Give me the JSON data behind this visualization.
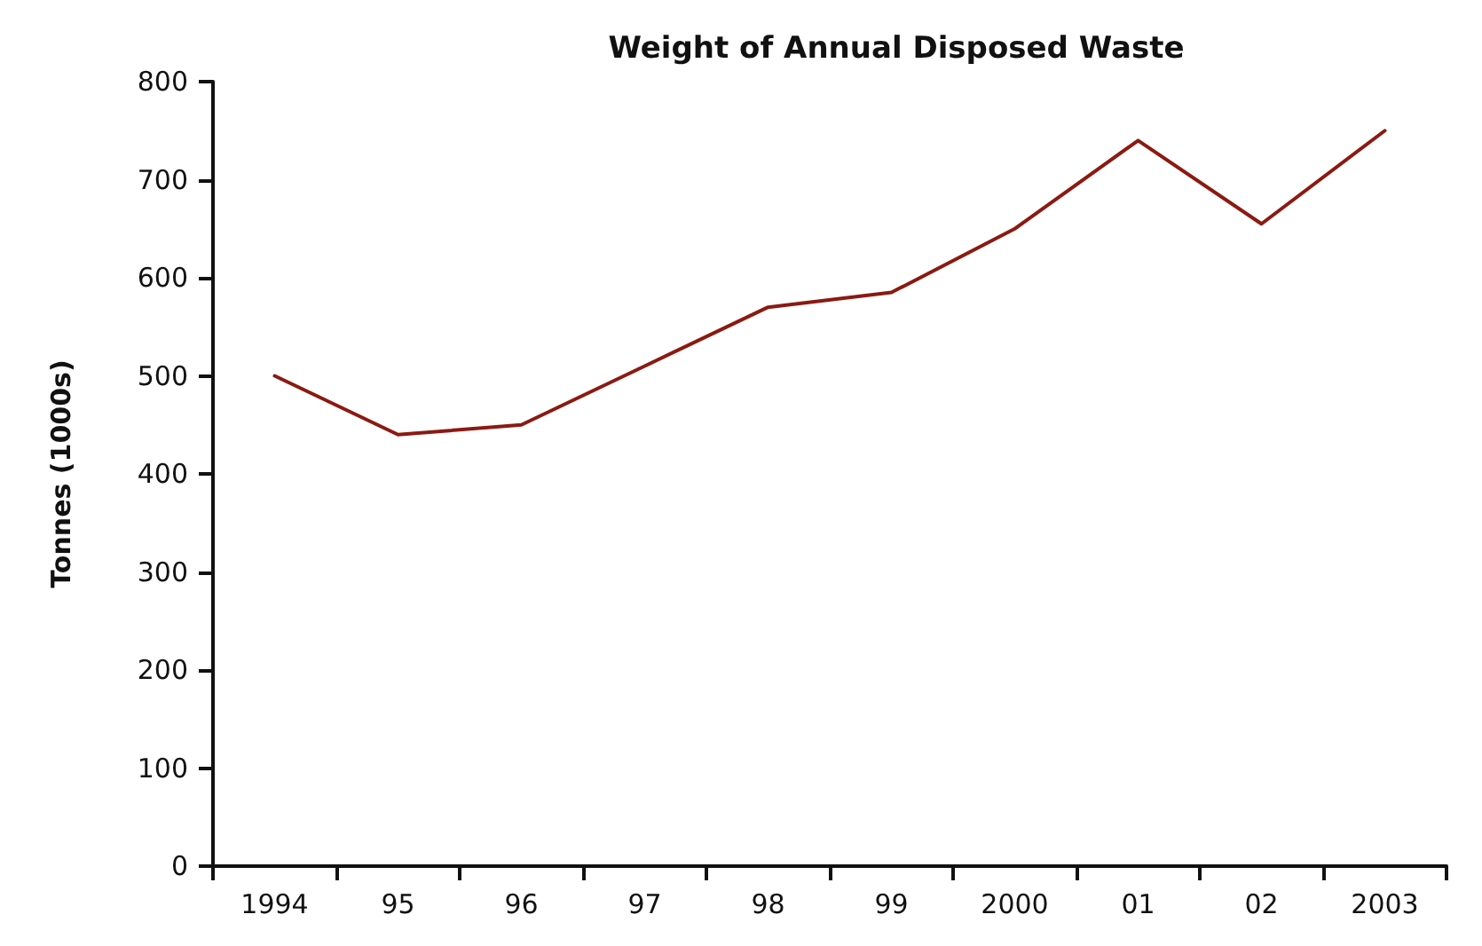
{
  "chart_data": {
    "type": "line",
    "title": "Weight of Annual Disposed Waste",
    "ylabel": "Tonnes (1000s)",
    "categories": [
      "1994",
      "95",
      "96",
      "97",
      "98",
      "99",
      "2000",
      "01",
      "02",
      "2003"
    ],
    "series": [
      {
        "color": "#8b1a12",
        "values": [
          500,
          440,
          450,
          510,
          570,
          585,
          650,
          740,
          655,
          750
        ]
      }
    ],
    "ylim": [
      0,
      800
    ],
    "yticks": [
      0,
      100,
      200,
      300,
      400,
      500,
      600,
      700,
      800
    ],
    "grid": false,
    "marker": "none"
  }
}
